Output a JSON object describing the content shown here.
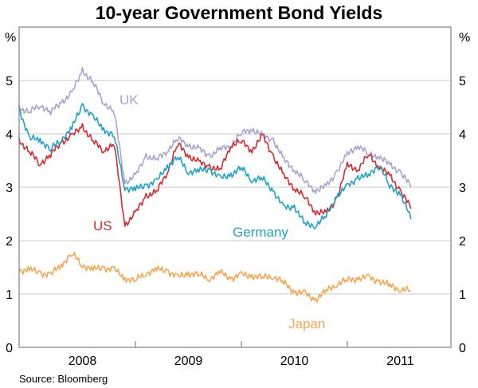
{
  "chart_data": {
    "type": "line",
    "title": "10-year Government Bond Yields",
    "ylabel_left": "%",
    "ylabel_right": "%",
    "ylim": [
      0,
      6
    ],
    "yticks": [
      "0",
      "1",
      "2",
      "3",
      "4",
      "5"
    ],
    "xlim": [
      2007.9,
      2011.98
    ],
    "xtick_labels": [
      "2008",
      "2009",
      "2010",
      "2011"
    ],
    "grid": true,
    "source": "Source: Bloomberg",
    "x": [
      2007.9,
      2008.0,
      2008.1,
      2008.2,
      2008.3,
      2008.4,
      2008.5,
      2008.6,
      2008.7,
      2008.8,
      2008.9,
      2009.0,
      2009.1,
      2009.2,
      2009.3,
      2009.4,
      2009.5,
      2009.6,
      2009.7,
      2009.8,
      2009.9,
      2010.0,
      2010.1,
      2010.2,
      2010.3,
      2010.4,
      2010.5,
      2010.6,
      2010.7,
      2010.8,
      2010.9,
      2011.0,
      2011.1,
      2011.2,
      2011.3,
      2011.4,
      2011.5,
      2011.6
    ],
    "series": [
      {
        "name": "UK",
        "color": "#a9a3d3",
        "values": [
          4.5,
          4.4,
          4.55,
          4.4,
          4.6,
          4.75,
          5.2,
          4.95,
          4.6,
          4.4,
          3.1,
          3.2,
          3.6,
          3.5,
          3.7,
          3.9,
          3.8,
          3.7,
          3.6,
          3.7,
          3.8,
          4.0,
          4.1,
          3.95,
          3.9,
          3.5,
          3.35,
          3.1,
          2.95,
          3.0,
          3.3,
          3.6,
          3.8,
          3.6,
          3.6,
          3.4,
          3.3,
          3.0
        ]
      },
      {
        "name": "US",
        "color": "#d62a30",
        "values": [
          3.9,
          3.65,
          3.45,
          3.6,
          3.85,
          3.95,
          4.15,
          3.85,
          3.7,
          3.8,
          2.3,
          2.5,
          2.85,
          2.9,
          3.3,
          3.8,
          3.6,
          3.45,
          3.4,
          3.3,
          3.8,
          3.85,
          3.7,
          3.95,
          3.6,
          3.2,
          3.0,
          2.8,
          2.55,
          2.5,
          2.8,
          3.4,
          3.35,
          3.6,
          3.4,
          3.2,
          2.95,
          2.6
        ]
      },
      {
        "name": "Germany",
        "color": "#1da2c9",
        "values": [
          4.5,
          3.9,
          3.9,
          3.7,
          3.9,
          4.1,
          4.55,
          4.3,
          4.1,
          3.95,
          3.0,
          2.95,
          3.05,
          3.1,
          3.4,
          3.55,
          3.3,
          3.3,
          3.35,
          3.15,
          3.25,
          3.35,
          3.15,
          3.15,
          2.95,
          2.6,
          2.65,
          2.3,
          2.3,
          2.45,
          2.85,
          3.0,
          3.2,
          3.2,
          3.45,
          3.0,
          2.9,
          2.4
        ]
      },
      {
        "name": "Japan",
        "color": "#f7a650",
        "values": [
          1.45,
          1.45,
          1.4,
          1.35,
          1.55,
          1.75,
          1.55,
          1.45,
          1.5,
          1.45,
          1.3,
          1.25,
          1.4,
          1.45,
          1.45,
          1.3,
          1.4,
          1.35,
          1.3,
          1.4,
          1.3,
          1.35,
          1.35,
          1.3,
          1.35,
          1.2,
          1.05,
          1.0,
          0.9,
          1.05,
          1.2,
          1.25,
          1.3,
          1.3,
          1.25,
          1.15,
          1.1,
          1.05
        ]
      }
    ]
  }
}
